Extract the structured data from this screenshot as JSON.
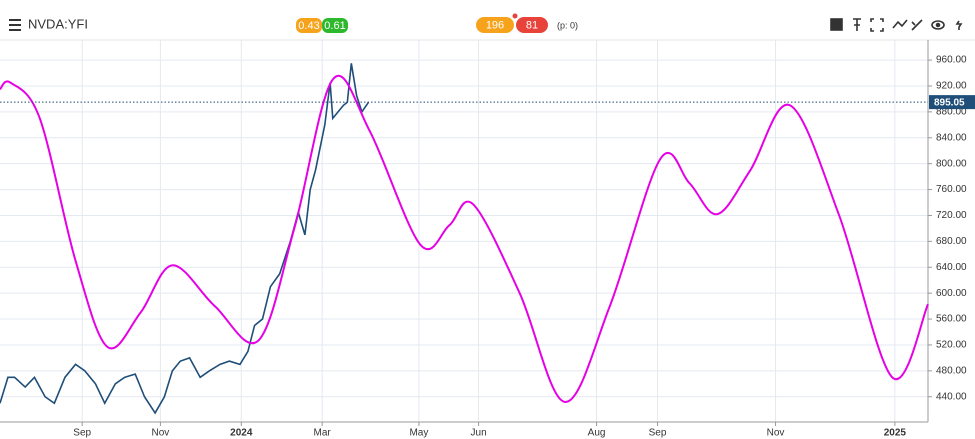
{
  "header": {
    "symbol": "NVDA:YFI",
    "badges": [
      "0.43",
      "0.61"
    ],
    "counts": [
      "196",
      "81"
    ],
    "pending": "(p: 0)"
  },
  "chart_data": {
    "type": "line",
    "xlim": [
      0,
      700
    ],
    "ylim": [
      401,
      991
    ],
    "xticks": [
      {
        "value": 62,
        "label": "Sep"
      },
      {
        "value": 121,
        "label": "Nov"
      },
      {
        "value": 182,
        "label": "2024"
      },
      {
        "value": 243,
        "label": "Mar"
      },
      {
        "value": 316,
        "label": "May"
      },
      {
        "value": 361,
        "label": "Jun"
      },
      {
        "value": 450,
        "label": "Aug"
      },
      {
        "value": 496,
        "label": "Sep"
      },
      {
        "value": 585,
        "label": "Nov"
      },
      {
        "value": 675,
        "label": "2025"
      }
    ],
    "yticks": [
      {
        "value": 440,
        "label": "440.00"
      },
      {
        "value": 480,
        "label": "480.00"
      },
      {
        "value": 520,
        "label": "520.00"
      },
      {
        "value": 560,
        "label": "560.00"
      },
      {
        "value": 600,
        "label": "600.00"
      },
      {
        "value": 640,
        "label": "640.00"
      },
      {
        "value": 680,
        "label": "680.00"
      },
      {
        "value": 720,
        "label": "720.00"
      },
      {
        "value": 760,
        "label": "760.00"
      },
      {
        "value": 800,
        "label": "800.00"
      },
      {
        "value": 840,
        "label": "840.00"
      },
      {
        "value": 880,
        "label": "880.00"
      },
      {
        "value": 920,
        "label": "920.00"
      },
      {
        "value": 960,
        "label": "960.00"
      }
    ],
    "grid": true,
    "last_price": 895.05,
    "series": [
      {
        "color": "#1f4e79",
        "smooth": false,
        "x": [
          0,
          6,
          11,
          19,
          26,
          34,
          41,
          49,
          57,
          64,
          72,
          79,
          87,
          94,
          102,
          109,
          117,
          124,
          130,
          136,
          143,
          151,
          158,
          166,
          173,
          181,
          187,
          192,
          198,
          204,
          211,
          219,
          225,
          230,
          234,
          238,
          241,
          245,
          249,
          251,
          255,
          259,
          262,
          265,
          269,
          273,
          278
        ],
        "values": [
          430,
          470,
          470,
          455,
          470,
          440,
          430,
          470,
          490,
          480,
          460,
          430,
          460,
          470,
          475,
          440,
          415,
          440,
          480,
          495,
          500,
          470,
          480,
          490,
          495,
          490,
          510,
          550,
          560,
          610,
          630,
          680,
          725,
          690,
          760,
          790,
          820,
          860,
          925,
          870,
          880,
          890,
          895,
          955,
          905,
          880,
          895
        ]
      },
      {
        "color": "#e600e6",
        "smooth": true,
        "x": [
          0,
          8,
          30,
          57,
          81,
          106,
          130,
          162,
          195,
          222,
          251,
          279,
          317,
          339,
          357,
          392,
          426,
          460,
          498,
          520,
          541,
          566,
          596,
          633,
          673,
          700
        ],
        "values": [
          915,
          925,
          870,
          650,
          517,
          570,
          643,
          580,
          527,
          700,
          930,
          850,
          675,
          705,
          737,
          600,
          432,
          580,
          807,
          770,
          722,
          790,
          890,
          720,
          470,
          583
        ]
      }
    ]
  }
}
